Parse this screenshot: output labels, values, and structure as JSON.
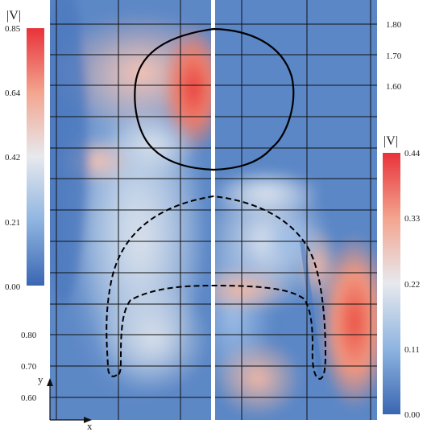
{
  "figure": {
    "field_symbol": "|V|",
    "axis_x_name": "x",
    "axis_y_name": "y"
  },
  "left_colorbar": {
    "label": "|V|",
    "ticks": [
      "0.85",
      "0.64",
      "0.42",
      "0.21",
      "0.00"
    ],
    "min": 0.0,
    "max": 0.85
  },
  "right_colorbar": {
    "label": "|V|",
    "ticks": [
      "0.44",
      "0.33",
      "0.22",
      "0.11",
      "0.00"
    ],
    "min": 0.0,
    "max": 0.44
  },
  "left_y_axis": {
    "ticks": [
      "0.80",
      "0.70",
      "0.60"
    ]
  },
  "right_y_axis": {
    "ticks": [
      "1.80",
      "1.70",
      "1.60"
    ]
  },
  "colors": {
    "low": "#3b6db5",
    "mid": "#e6e8ee",
    "high": "#e8343c"
  }
}
